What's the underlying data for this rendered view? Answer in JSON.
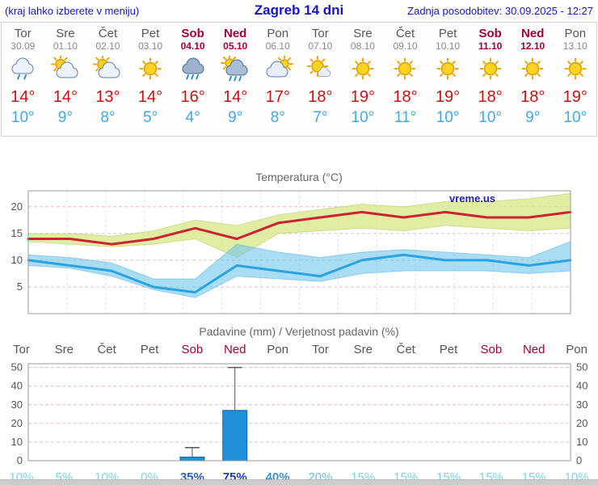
{
  "header": {
    "note": "(kraj lahko izberete v meniju)",
    "title": "Zagreb 14 dni",
    "updated": "Zadnja posodobitev: 30.09.2025 - 12:27"
  },
  "colors": {
    "line_max": "#cc2233",
    "line_min": "#2aa3e3",
    "band_max": "#d9e98c",
    "band_min": "#6ec6ec",
    "bar_fill": "#1f8fd8",
    "grid_pink": "#e5bcbc",
    "weekend_red": "#a50034",
    "tmax_red": "#cc1111",
    "tmin_blue": "#45a7e8",
    "header_blue": "#1414cc"
  },
  "days": [
    {
      "name": "Tor",
      "date": "30.09",
      "weekend": false,
      "icon": "rain-cloud",
      "tmax": "14°",
      "tmin": "10°"
    },
    {
      "name": "Sre",
      "date": "01.10",
      "weekend": false,
      "icon": "sun-cloud",
      "tmax": "14°",
      "tmin": "9°"
    },
    {
      "name": "Čet",
      "date": "02.10",
      "weekend": false,
      "icon": "sun-cloud",
      "tmax": "13°",
      "tmin": "8°"
    },
    {
      "name": "Pet",
      "date": "03.10",
      "weekend": false,
      "icon": "sunny",
      "tmax": "14°",
      "tmin": "5°"
    },
    {
      "name": "Sob",
      "date": "04.10",
      "weekend": true,
      "icon": "rain",
      "tmax": "16°",
      "tmin": "4°"
    },
    {
      "name": "Ned",
      "date": "05.10",
      "weekend": true,
      "icon": "rain-sun",
      "tmax": "14°",
      "tmin": "9°"
    },
    {
      "name": "Pon",
      "date": "06.10",
      "weekend": false,
      "icon": "cloud-sun",
      "tmax": "17°",
      "tmin": "8°"
    },
    {
      "name": "Tor",
      "date": "07.10",
      "weekend": false,
      "icon": "sun-small-cloud",
      "tmax": "18°",
      "tmin": "7°"
    },
    {
      "name": "Sre",
      "date": "08.10",
      "weekend": false,
      "icon": "sunny",
      "tmax": "19°",
      "tmin": "10°"
    },
    {
      "name": "Čet",
      "date": "09.10",
      "weekend": false,
      "icon": "sunny",
      "tmax": "18°",
      "tmin": "11°"
    },
    {
      "name": "Pet",
      "date": "10.10",
      "weekend": false,
      "icon": "sunny",
      "tmax": "19°",
      "tmin": "10°"
    },
    {
      "name": "Sob",
      "date": "11.10",
      "weekend": true,
      "icon": "sunny",
      "tmax": "18°",
      "tmin": "10°"
    },
    {
      "name": "Ned",
      "date": "12.10",
      "weekend": true,
      "icon": "sunny",
      "tmax": "18°",
      "tmin": "9°"
    },
    {
      "name": "Pon",
      "date": "13.10",
      "weekend": false,
      "icon": "sunny",
      "tmax": "19°",
      "tmin": "10°"
    }
  ],
  "chart_data": [
    {
      "type": "line",
      "title": "Temperatura (°C)",
      "watermark": "vreme.us",
      "x_labels": [
        "Tor",
        "Sre",
        "Čet",
        "Pet",
        "Sob",
        "Ned",
        "Pon",
        "Tor",
        "Sre",
        "Čet",
        "Pet",
        "Sob",
        "Ned",
        "Pon"
      ],
      "ylim": [
        0,
        23
      ],
      "yticks": [
        5,
        10,
        15,
        20
      ],
      "grid": true,
      "series": [
        {
          "name": "tmax",
          "values": [
            14,
            14,
            13,
            14,
            16,
            14,
            17,
            18,
            19,
            18,
            19,
            18,
            18,
            19
          ]
        },
        {
          "name": "tmin",
          "values": [
            10,
            9,
            8,
            5,
            4,
            9,
            8,
            7,
            10,
            11,
            10,
            10,
            9,
            10
          ]
        },
        {
          "name": "tmax_band_upper",
          "values": [
            15,
            15,
            14.5,
            15.5,
            17.5,
            16.5,
            18.5,
            19.5,
            20.5,
            20,
            21,
            21,
            21.5,
            22.5
          ]
        },
        {
          "name": "tmax_band_lower",
          "values": [
            13.5,
            13,
            12.5,
            13,
            14,
            10.5,
            15,
            15.5,
            16,
            15.5,
            16.5,
            16,
            15.5,
            16
          ]
        },
        {
          "name": "tmin_band_upper",
          "values": [
            11,
            10.5,
            9.5,
            6.5,
            6.5,
            13,
            11.5,
            10.5,
            11.5,
            12,
            11.5,
            11,
            10.5,
            13.5
          ]
        },
        {
          "name": "tmin_band_lower",
          "values": [
            9,
            8.5,
            7,
            4.5,
            3,
            7,
            6.5,
            6,
            7.5,
            8,
            8,
            8,
            7.5,
            8
          ]
        }
      ]
    },
    {
      "type": "bar",
      "title": "Padavine (mm) / Verjetnost padavin (%)",
      "categories": [
        "Tor",
        "Sre",
        "Čet",
        "Pet",
        "Sob",
        "Ned",
        "Pon",
        "Tor",
        "Sre",
        "Čet",
        "Pet",
        "Sob",
        "Ned",
        "Pon"
      ],
      "weekend": [
        false,
        false,
        false,
        false,
        true,
        true,
        false,
        false,
        false,
        false,
        false,
        true,
        true,
        false
      ],
      "values": [
        0,
        0,
        0,
        0,
        2,
        27,
        0,
        0,
        0,
        0,
        0,
        0,
        0,
        0
      ],
      "whiskers": [
        0,
        0,
        0,
        0,
        7,
        50,
        0,
        0,
        0,
        0,
        0,
        0,
        0,
        0
      ],
      "ylim": [
        0,
        52
      ],
      "yticks": [
        0,
        10,
        20,
        30,
        40,
        50
      ],
      "probabilities": [
        {
          "value": "10%",
          "color": "#7bd2ee",
          "bold": false
        },
        {
          "value": "5%",
          "color": "#7bd2ee",
          "bold": false
        },
        {
          "value": "10%",
          "color": "#7bd2ee",
          "bold": false
        },
        {
          "value": "0%",
          "color": "#7bd2ee",
          "bold": false
        },
        {
          "value": "35%",
          "color": "#2e5fb4",
          "bold": true
        },
        {
          "value": "75%",
          "color": "#1c3ca8",
          "bold": true
        },
        {
          "value": "40%",
          "color": "#3e8fd0",
          "bold": true
        },
        {
          "value": "20%",
          "color": "#66bde6",
          "bold": false
        },
        {
          "value": "15%",
          "color": "#7bd2ee",
          "bold": false
        },
        {
          "value": "15%",
          "color": "#7bd2ee",
          "bold": false
        },
        {
          "value": "15%",
          "color": "#7bd2ee",
          "bold": false
        },
        {
          "value": "15%",
          "color": "#7bd2ee",
          "bold": false
        },
        {
          "value": "15%",
          "color": "#7bd2ee",
          "bold": false
        },
        {
          "value": "10%",
          "color": "#7bd2ee",
          "bold": false
        }
      ]
    }
  ]
}
